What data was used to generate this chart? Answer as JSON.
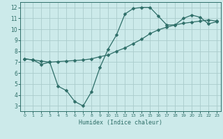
{
  "xlabel": "Humidex (Indice chaleur)",
  "background_color": "#cceaea",
  "grid_color": "#aacccc",
  "line_color": "#2e6e68",
  "xlim": [
    -0.5,
    23.5
  ],
  "ylim": [
    2.5,
    12.5
  ],
  "xticks": [
    0,
    1,
    2,
    3,
    4,
    5,
    6,
    7,
    8,
    9,
    10,
    11,
    12,
    13,
    14,
    15,
    16,
    17,
    18,
    19,
    20,
    21,
    22,
    23
  ],
  "yticks": [
    3,
    4,
    5,
    6,
    7,
    8,
    9,
    10,
    11,
    12
  ],
  "line1_x": [
    0,
    1,
    2,
    3,
    4,
    5,
    6,
    7,
    8,
    9,
    10,
    11,
    12,
    13,
    14,
    15,
    16,
    17,
    18,
    19,
    20,
    21,
    22,
    23
  ],
  "line1_y": [
    7.3,
    7.2,
    6.8,
    7.0,
    4.8,
    4.4,
    3.4,
    3.0,
    4.3,
    6.5,
    8.2,
    9.5,
    11.4,
    11.9,
    12.0,
    12.0,
    11.2,
    10.4,
    10.4,
    11.0,
    11.3,
    11.1,
    10.5,
    10.7
  ],
  "line2_x": [
    0,
    1,
    2,
    3,
    4,
    5,
    6,
    7,
    8,
    9,
    10,
    11,
    12,
    13,
    14,
    15,
    16,
    17,
    18,
    19,
    20,
    21,
    22,
    23
  ],
  "line2_y": [
    7.3,
    7.2,
    7.1,
    7.0,
    7.05,
    7.1,
    7.15,
    7.2,
    7.3,
    7.5,
    7.65,
    8.0,
    8.3,
    8.7,
    9.1,
    9.6,
    9.95,
    10.2,
    10.4,
    10.55,
    10.65,
    10.75,
    10.85,
    10.75
  ],
  "marker_size": 2.5,
  "linewidth": 0.9
}
